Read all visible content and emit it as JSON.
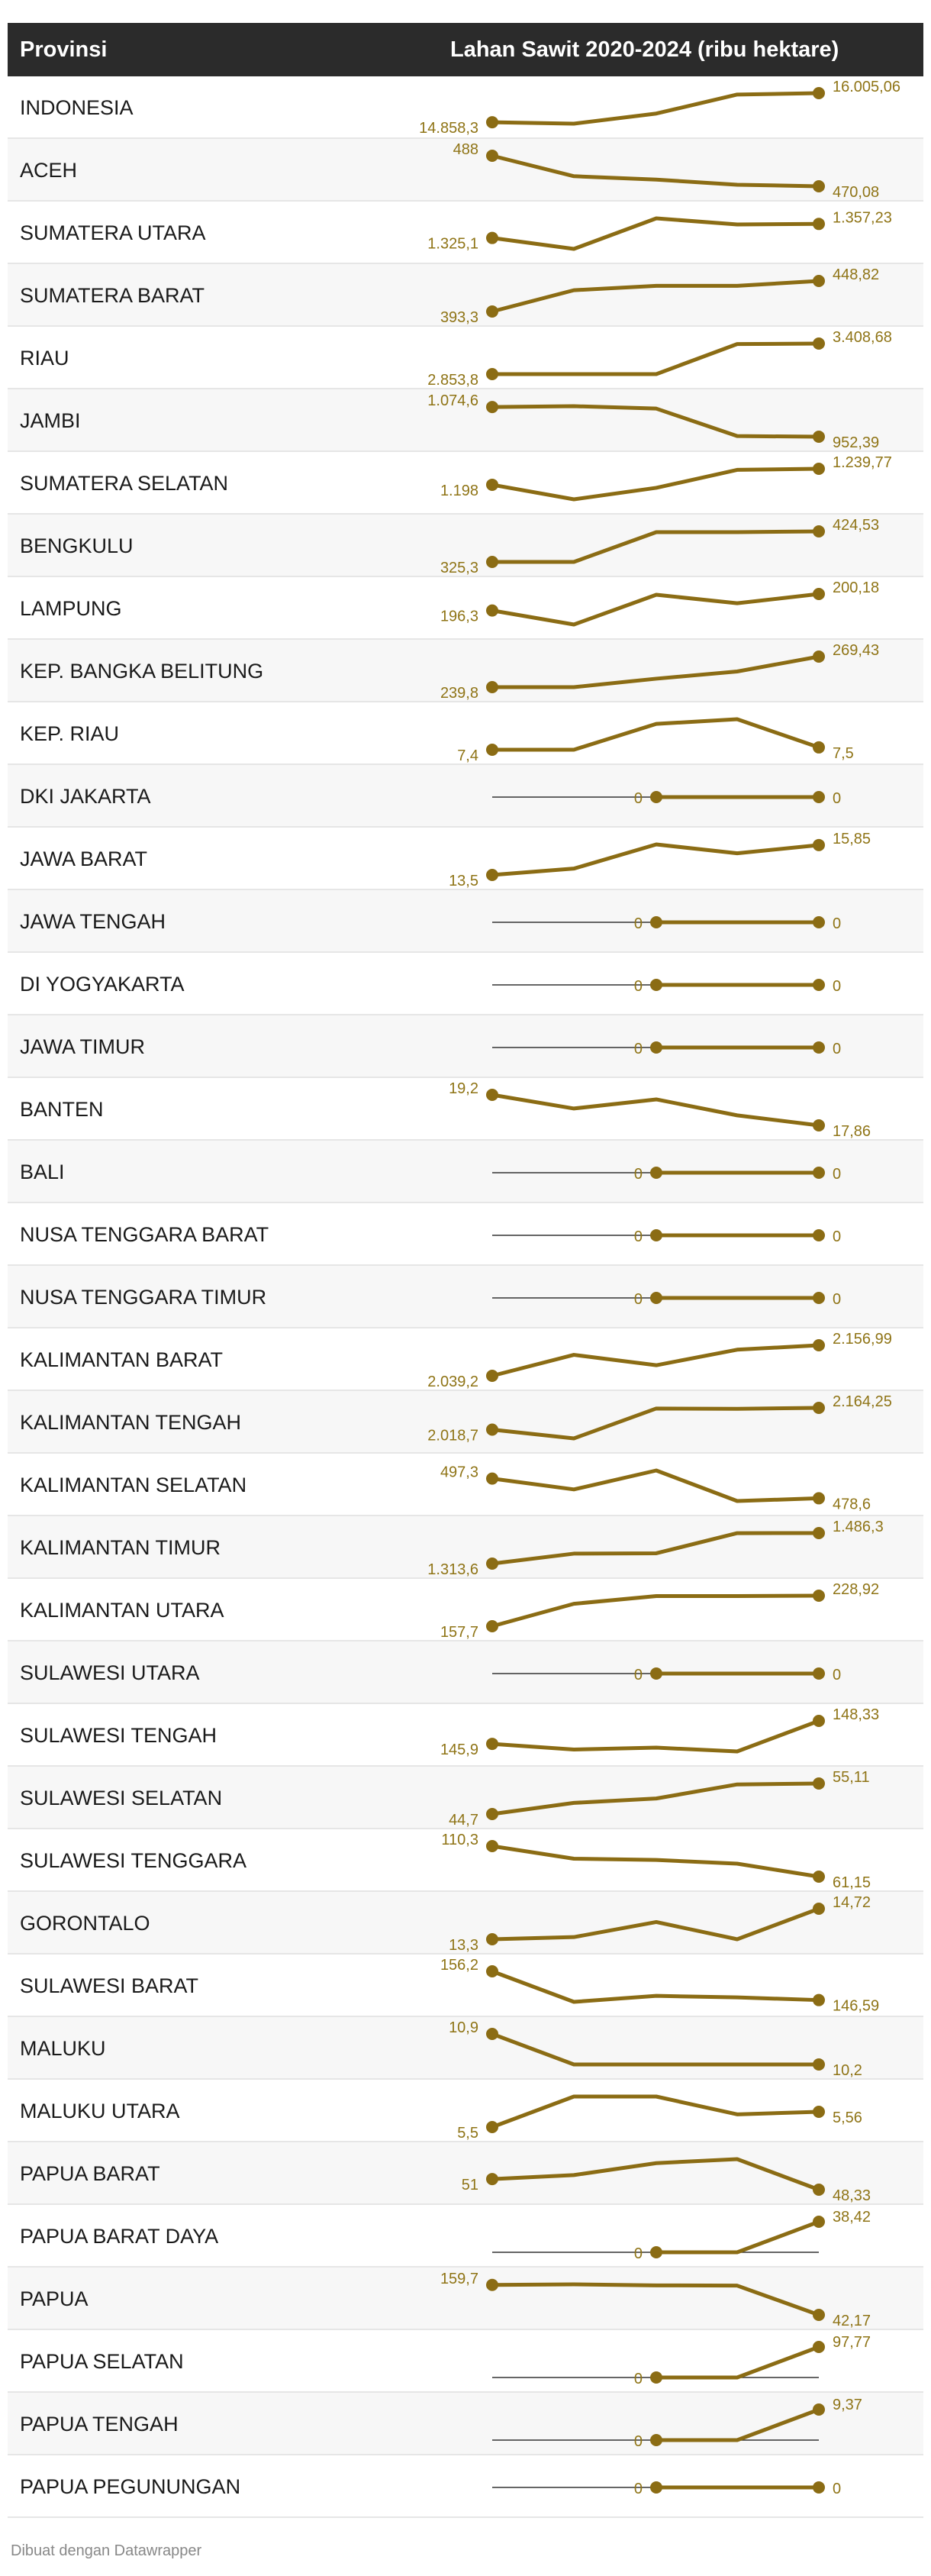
{
  "header": {
    "col1": "Provinsi",
    "col2": "Lahan Sawit 2020-2024 (ribu hektare)"
  },
  "footer": "Dibuat dengan Datawrapper",
  "colors": {
    "line": "#8b6c14",
    "label": "#8f7416",
    "header_bg": "#2b2b2b",
    "zero_line": "#333333"
  },
  "chart_data": {
    "type": "line",
    "x": [
      2020,
      2021,
      2022,
      2023,
      2024
    ],
    "rows": [
      {
        "name": "INDONESIA",
        "values": [
          14858.3,
          14800,
          15200,
          15950,
          16005.06
        ],
        "first_label": "14.858,3",
        "last_label": "16.005,06"
      },
      {
        "name": "ACEH",
        "values": [
          488,
          476,
          474,
          471,
          470.08
        ],
        "first_label": "488",
        "last_label": "470,08"
      },
      {
        "name": "SUMATERA UTARA",
        "values": [
          1325.1,
          1300,
          1370,
          1356,
          1357.23
        ],
        "first_label": "1.325,1",
        "last_label": "1.357,23"
      },
      {
        "name": "SUMATERA BARAT",
        "values": [
          393.3,
          432,
          440,
          440,
          448.82
        ],
        "first_label": "393,3",
        "last_label": "448,82"
      },
      {
        "name": "RIAU",
        "values": [
          2853.8,
          2853.8,
          2853.8,
          3400,
          3408.68
        ],
        "first_label": "2.853,8",
        "last_label": "3.408,68"
      },
      {
        "name": "JAMBI",
        "values": [
          1074.6,
          1078,
          1068,
          955,
          952.39
        ],
        "first_label": "1.074,6",
        "last_label": "952,39"
      },
      {
        "name": "SUMATERA SELATAN",
        "values": [
          1198,
          1160,
          1190,
          1237,
          1239.77
        ],
        "first_label": "1.198",
        "last_label": "1.239,77"
      },
      {
        "name": "BENGKULU",
        "values": [
          325.3,
          325.3,
          422,
          422,
          424.53
        ],
        "first_label": "325,3",
        "last_label": "424,53"
      },
      {
        "name": "LAMPUNG",
        "values": [
          196.3,
          193,
          200,
          198,
          200.18
        ],
        "first_label": "196,3",
        "last_label": "200,18"
      },
      {
        "name": "KEP. BANGKA BELITUNG",
        "values": [
          239.8,
          239.8,
          248,
          255,
          269.43
        ],
        "first_label": "239,8",
        "last_label": "269,43"
      },
      {
        "name": "KEP. RIAU",
        "values": [
          7.4,
          7.4,
          8.5,
          8.7,
          7.5
        ],
        "first_label": "7,4",
        "last_label": "7,5"
      },
      {
        "name": "DKI JAKARTA",
        "values": [
          0,
          0,
          0,
          0,
          0
        ],
        "first_label": "0",
        "last_label": "0",
        "zero_start": 2
      },
      {
        "name": "JAWA BARAT",
        "values": [
          13.5,
          14,
          15.9,
          15.2,
          15.85
        ],
        "first_label": "13,5",
        "last_label": "15,85"
      },
      {
        "name": "JAWA TENGAH",
        "values": [
          0,
          0,
          0,
          0,
          0
        ],
        "first_label": "0",
        "last_label": "0",
        "zero_start": 2
      },
      {
        "name": "DI YOGYAKARTA",
        "values": [
          0,
          0,
          0,
          0,
          0
        ],
        "first_label": "0",
        "last_label": "0",
        "zero_start": 2
      },
      {
        "name": "JAWA TIMUR",
        "values": [
          0,
          0,
          0,
          0,
          0
        ],
        "first_label": "0",
        "last_label": "0",
        "zero_start": 2
      },
      {
        "name": "BANTEN",
        "values": [
          19.2,
          18.6,
          19,
          18.3,
          17.86
        ],
        "first_label": "19,2",
        "last_label": "17,86"
      },
      {
        "name": "BALI",
        "values": [
          0,
          0,
          0,
          0,
          0
        ],
        "first_label": "0",
        "last_label": "0",
        "zero_start": 2
      },
      {
        "name": "NUSA TENGGARA BARAT",
        "values": [
          0,
          0,
          0,
          0,
          0
        ],
        "first_label": "0",
        "last_label": "0",
        "zero_start": 2
      },
      {
        "name": "NUSA TENGGARA TIMUR",
        "values": [
          0,
          0,
          0,
          0,
          0
        ],
        "first_label": "0",
        "last_label": "0",
        "zero_start": 2
      },
      {
        "name": "KALIMANTAN BARAT",
        "values": [
          2039.2,
          2120,
          2080,
          2140,
          2156.99
        ],
        "first_label": "2.039,2",
        "last_label": "2.156,99"
      },
      {
        "name": "KALIMANTAN TENGAH",
        "values": [
          2018.7,
          1960,
          2160,
          2158,
          2164.25
        ],
        "first_label": "2.018,7",
        "last_label": "2.164,25"
      },
      {
        "name": "KALIMANTAN SELATAN",
        "values": [
          497.3,
          487,
          505,
          476,
          478.6
        ],
        "first_label": "497,3",
        "last_label": "478,6"
      },
      {
        "name": "KALIMANTAN TIMUR",
        "values": [
          1313.6,
          1370,
          1372,
          1486,
          1486.3
        ],
        "first_label": "1.313,6",
        "last_label": "1.486,3"
      },
      {
        "name": "KALIMANTAN UTARA",
        "values": [
          157.7,
          210,
          228,
          228,
          228.92
        ],
        "first_label": "157,7",
        "last_label": "228,92"
      },
      {
        "name": "SULAWESI UTARA",
        "values": [
          0,
          0,
          0,
          0,
          0
        ],
        "first_label": "0",
        "last_label": "0",
        "zero_start": 2
      },
      {
        "name": "SULAWESI TENGAH",
        "values": [
          145.9,
          145.3,
          145.5,
          145.1,
          148.33
        ],
        "first_label": "145,9",
        "last_label": "148,33"
      },
      {
        "name": "SULAWESI SELATAN",
        "values": [
          44.7,
          48.5,
          50,
          54.8,
          55.11
        ],
        "first_label": "44,7",
        "last_label": "55,11"
      },
      {
        "name": "SULAWESI TENGGARA",
        "values": [
          110.3,
          90,
          88,
          82,
          61.15
        ],
        "first_label": "110,3",
        "last_label": "61,15"
      },
      {
        "name": "GORONTALO",
        "values": [
          13.3,
          13.4,
          14.1,
          13.3,
          14.72
        ],
        "first_label": "13,3",
        "last_label": "14,72"
      },
      {
        "name": "SULAWESI BARAT",
        "values": [
          156.2,
          146,
          148,
          147.5,
          146.59
        ],
        "first_label": "156,2",
        "last_label": "146,59"
      },
      {
        "name": "MALUKU",
        "values": [
          10.9,
          10.2,
          10.2,
          10.2,
          10.2
        ],
        "first_label": "10,9",
        "last_label": "10,2"
      },
      {
        "name": "MALUKU UTARA",
        "values": [
          5.5,
          5.62,
          5.62,
          5.55,
          5.56
        ],
        "first_label": "5,5",
        "last_label": "5,56"
      },
      {
        "name": "PAPUA BARAT",
        "values": [
          51,
          52,
          55,
          56,
          48.33
        ],
        "first_label": "51",
        "last_label": "48,33"
      },
      {
        "name": "PAPUA BARAT DAYA",
        "values": [
          0,
          0,
          0,
          0,
          38.42
        ],
        "first_label": "0",
        "last_label": "38,42",
        "zero_start": 2
      },
      {
        "name": "PAPUA",
        "values": [
          159.7,
          162,
          158,
          157,
          42.17
        ],
        "first_label": "159,7",
        "last_label": "42,17"
      },
      {
        "name": "PAPUA SELATAN",
        "values": [
          0,
          0,
          0,
          0,
          97.77
        ],
        "first_label": "0",
        "last_label": "97,77",
        "zero_start": 2
      },
      {
        "name": "PAPUA TENGAH",
        "values": [
          0,
          0,
          0,
          0,
          9.37
        ],
        "first_label": "0",
        "last_label": "9,37",
        "zero_start": 2
      },
      {
        "name": "PAPUA PEGUNUNGAN",
        "values": [
          0,
          0,
          0,
          0,
          0
        ],
        "first_label": "0",
        "last_label": "0",
        "zero_start": 2
      }
    ]
  }
}
